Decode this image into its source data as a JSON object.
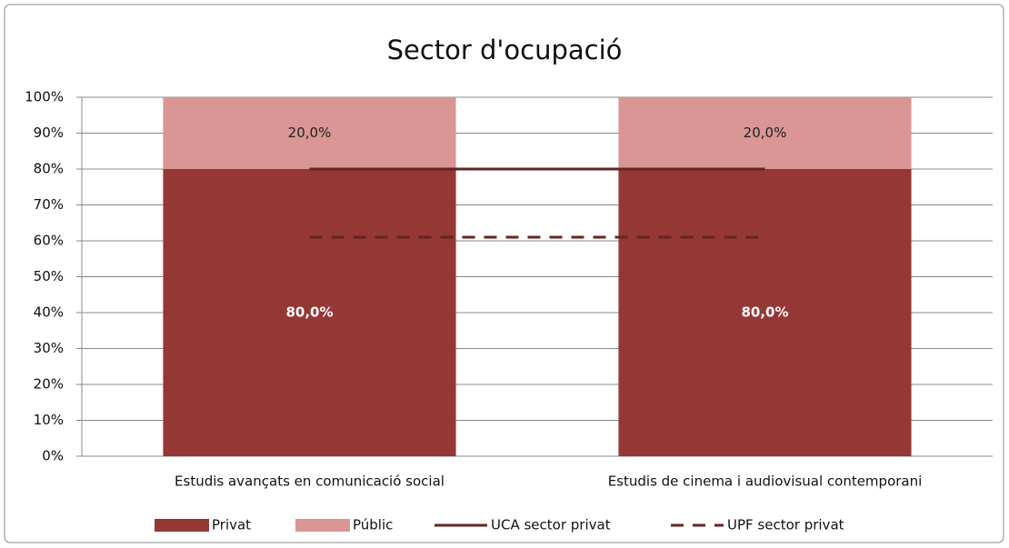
{
  "chart_data": {
    "type": "bar",
    "stacked": true,
    "title": "Sector d'ocupació",
    "categories": [
      "Estudis avançats en comunicació social",
      "Estudis de cinema i audiovisual contemporani"
    ],
    "series": [
      {
        "name": "Privat",
        "type": "bar",
        "color": "#953735",
        "values": [
          80,
          80
        ],
        "value_labels": [
          "80,0%",
          "80,0%"
        ],
        "label_color": "#ffffff"
      },
      {
        "name": "Públic",
        "type": "bar",
        "color": "#d99694",
        "values": [
          20,
          20
        ],
        "value_labels": [
          "20,0%",
          "20,0%"
        ],
        "label_color": "#222222"
      },
      {
        "name": "UCA sector privat",
        "type": "line",
        "color": "#632523",
        "values": [
          80,
          80
        ]
      },
      {
        "name": "UPF sector privat",
        "type": "line",
        "color": "#632523",
        "dashed": true,
        "values": [
          61,
          61
        ]
      }
    ],
    "ylim": [
      0,
      100
    ],
    "yticks": [
      {
        "value": 0,
        "label": "0%"
      },
      {
        "value": 10,
        "label": "10%"
      },
      {
        "value": 20,
        "label": "20%"
      },
      {
        "value": 30,
        "label": "30%"
      },
      {
        "value": 40,
        "label": "40%"
      },
      {
        "value": 50,
        "label": "50%"
      },
      {
        "value": 60,
        "label": "60%"
      },
      {
        "value": 70,
        "label": "70%"
      },
      {
        "value": 80,
        "label": "80%"
      },
      {
        "value": 90,
        "label": "90%"
      },
      {
        "value": 100,
        "label": "100%"
      }
    ],
    "grid": true,
    "legend": "bottom"
  }
}
